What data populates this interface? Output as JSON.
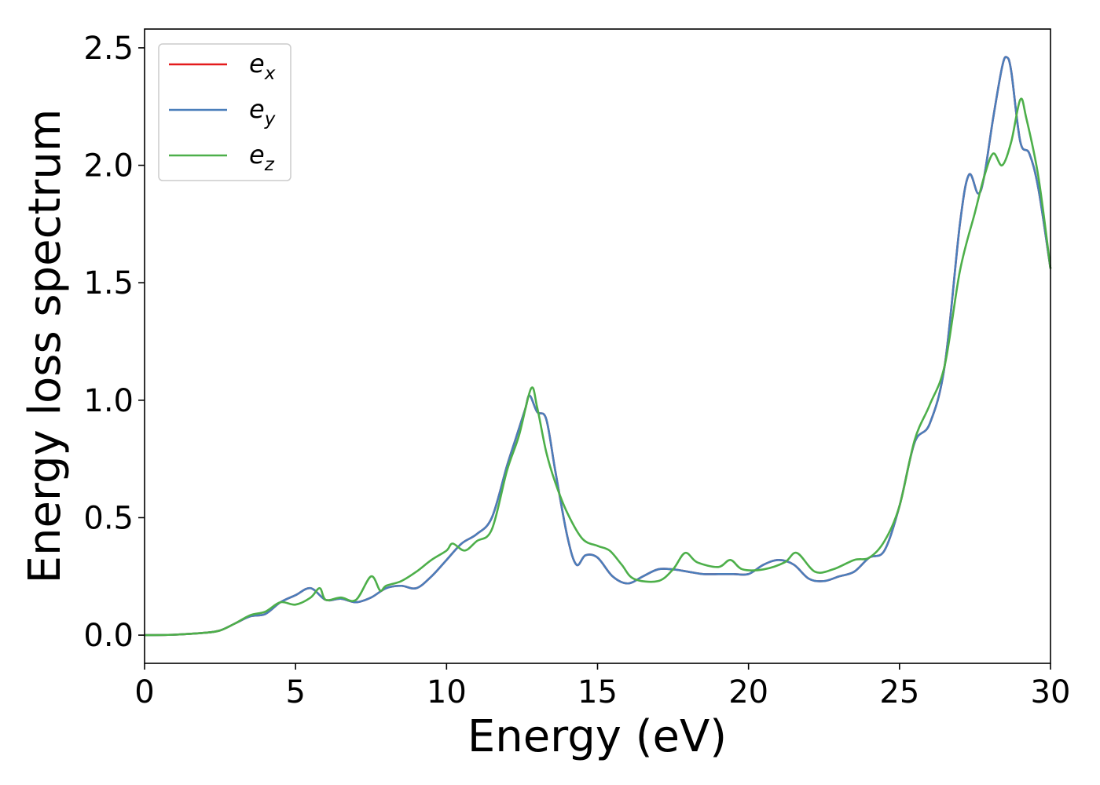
{
  "chart_data": {
    "type": "line",
    "title": "",
    "xlabel": "Energy (eV)",
    "ylabel": "Energy loss spectrum",
    "xlim": [
      0,
      30
    ],
    "ylim": [
      -0.12,
      2.58
    ],
    "xticks": [
      0,
      5,
      10,
      15,
      20,
      25,
      30
    ],
    "yticks": [
      0.0,
      0.5,
      1.0,
      1.5,
      2.0,
      2.5
    ],
    "xtick_labels": [
      "0",
      "5",
      "10",
      "15",
      "20",
      "25",
      "30"
    ],
    "ytick_labels": [
      "0.0",
      "0.5",
      "1.0",
      "1.5",
      "2.0",
      "2.5"
    ],
    "grid": false,
    "legend_position": "top-left",
    "series": [
      {
        "name": "e",
        "subscript": "x",
        "color": "#e41a1c",
        "x": [
          0,
          1,
          2,
          2.5,
          3,
          3.5,
          4,
          4.5,
          5,
          5.5,
          6,
          6.5,
          7,
          7.5,
          8,
          8.5,
          9,
          9.5,
          10,
          10.5,
          11,
          11.5,
          12,
          12.3,
          12.6,
          12.75,
          13,
          13.3,
          13.6,
          14,
          14.3,
          14.6,
          15,
          15.5,
          16,
          16.5,
          17,
          17.5,
          18,
          18.5,
          19,
          19.5,
          20,
          20.5,
          21,
          21.5,
          22,
          22.5,
          23,
          23.5,
          24,
          24.5,
          25,
          25.5,
          26,
          26.5,
          27,
          27.3,
          27.6,
          27.8,
          28.1,
          28.4,
          28.55,
          28.7,
          29,
          29.3,
          29.6,
          30
        ],
        "y": [
          0,
          0.002,
          0.01,
          0.02,
          0.05,
          0.08,
          0.09,
          0.14,
          0.17,
          0.2,
          0.15,
          0.155,
          0.14,
          0.16,
          0.2,
          0.21,
          0.2,
          0.25,
          0.32,
          0.39,
          0.43,
          0.5,
          0.72,
          0.84,
          0.96,
          1.02,
          0.95,
          0.92,
          0.7,
          0.42,
          0.3,
          0.34,
          0.33,
          0.25,
          0.22,
          0.25,
          0.28,
          0.28,
          0.27,
          0.26,
          0.26,
          0.26,
          0.26,
          0.3,
          0.32,
          0.3,
          0.24,
          0.23,
          0.25,
          0.27,
          0.33,
          0.36,
          0.55,
          0.82,
          0.9,
          1.15,
          1.75,
          1.96,
          1.88,
          1.95,
          2.2,
          2.42,
          2.46,
          2.4,
          2.1,
          2.05,
          1.9,
          1.56
        ]
      },
      {
        "name": "e",
        "subscript": "y",
        "color": "#4a7ebb",
        "x": [
          0,
          1,
          2,
          2.5,
          3,
          3.5,
          4,
          4.5,
          5,
          5.5,
          6,
          6.5,
          7,
          7.5,
          8,
          8.5,
          9,
          9.5,
          10,
          10.5,
          11,
          11.5,
          12,
          12.3,
          12.6,
          12.75,
          13,
          13.3,
          13.6,
          14,
          14.3,
          14.6,
          15,
          15.5,
          16,
          16.5,
          17,
          17.5,
          18,
          18.5,
          19,
          19.5,
          20,
          20.5,
          21,
          21.5,
          22,
          22.5,
          23,
          23.5,
          24,
          24.5,
          25,
          25.5,
          26,
          26.5,
          27,
          27.3,
          27.6,
          27.8,
          28.1,
          28.4,
          28.55,
          28.7,
          29,
          29.3,
          29.6,
          30
        ],
        "y": [
          0,
          0.002,
          0.01,
          0.02,
          0.05,
          0.08,
          0.09,
          0.14,
          0.17,
          0.2,
          0.15,
          0.155,
          0.14,
          0.16,
          0.2,
          0.21,
          0.2,
          0.25,
          0.32,
          0.39,
          0.43,
          0.5,
          0.72,
          0.84,
          0.96,
          1.02,
          0.95,
          0.92,
          0.7,
          0.42,
          0.3,
          0.34,
          0.33,
          0.25,
          0.22,
          0.25,
          0.28,
          0.28,
          0.27,
          0.26,
          0.26,
          0.26,
          0.26,
          0.3,
          0.32,
          0.3,
          0.24,
          0.23,
          0.25,
          0.27,
          0.33,
          0.36,
          0.55,
          0.82,
          0.9,
          1.15,
          1.75,
          1.96,
          1.88,
          1.95,
          2.2,
          2.42,
          2.46,
          2.4,
          2.1,
          2.05,
          1.9,
          1.56
        ]
      },
      {
        "name": "e",
        "subscript": "z",
        "color": "#4daf4a",
        "x": [
          0,
          1,
          2,
          2.5,
          3,
          3.5,
          4,
          4.5,
          5,
          5.5,
          5.8,
          6,
          6.5,
          7,
          7.5,
          7.8,
          8,
          8.5,
          9,
          9.5,
          10,
          10.2,
          10.6,
          11,
          11.5,
          12,
          12.4,
          12.8,
          13,
          13.3,
          13.6,
          14,
          14.5,
          15,
          15.4,
          15.8,
          16.2,
          17,
          17.5,
          17.9,
          18.3,
          19,
          19.4,
          19.8,
          20.5,
          21.2,
          21.6,
          22.2,
          22.8,
          23.5,
          24,
          24.5,
          25,
          25.5,
          26,
          26.5,
          27,
          27.5,
          27.8,
          28.1,
          28.4,
          28.7,
          29,
          29.2,
          29.6,
          30
        ],
        "y": [
          0,
          0.002,
          0.01,
          0.02,
          0.05,
          0.085,
          0.1,
          0.14,
          0.13,
          0.16,
          0.2,
          0.15,
          0.16,
          0.15,
          0.25,
          0.19,
          0.21,
          0.23,
          0.27,
          0.32,
          0.36,
          0.39,
          0.36,
          0.4,
          0.45,
          0.7,
          0.85,
          1.05,
          0.97,
          0.78,
          0.65,
          0.52,
          0.41,
          0.38,
          0.36,
          0.3,
          0.24,
          0.23,
          0.28,
          0.35,
          0.31,
          0.29,
          0.32,
          0.28,
          0.28,
          0.31,
          0.35,
          0.27,
          0.28,
          0.32,
          0.33,
          0.4,
          0.55,
          0.83,
          0.98,
          1.15,
          1.55,
          1.8,
          1.95,
          2.05,
          2.0,
          2.1,
          2.28,
          2.2,
          1.95,
          1.56
        ]
      }
    ]
  }
}
